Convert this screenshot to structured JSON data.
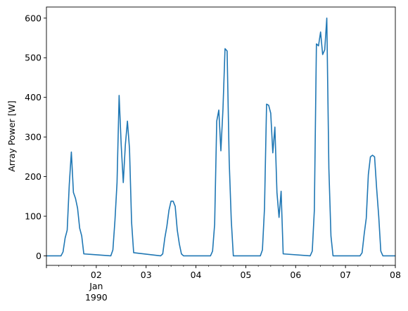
{
  "chart_data": {
    "type": "line",
    "title": "",
    "xlabel": "",
    "ylabel": "Array Power [W]",
    "xlim": [
      "1990-01-01 00:00",
      "1990-01-08 00:00"
    ],
    "ylim": [
      -24,
      628
    ],
    "grid": false,
    "legend": "none",
    "line_color": "#1f77b4",
    "x_ticks": [
      {
        "at": "1990-01-01 00:00",
        "label": ""
      },
      {
        "at": "1990-01-02 00:00",
        "label": "02",
        "sublabel": "Jan",
        "sublabel2": "1990"
      },
      {
        "at": "1990-01-03 00:00",
        "label": "03"
      },
      {
        "at": "1990-01-04 00:00",
        "label": "04"
      },
      {
        "at": "1990-01-05 00:00",
        "label": "05"
      },
      {
        "at": "1990-01-06 00:00",
        "label": "06"
      },
      {
        "at": "1990-01-07 00:00",
        "label": "07"
      },
      {
        "at": "1990-01-08 00:00",
        "label": "08"
      }
    ],
    "y_ticks": [
      0,
      100,
      200,
      300,
      400,
      500,
      600
    ],
    "series": [
      {
        "x": [
          "1990-01-01 00:00",
          "1990-01-01 07:00",
          "1990-01-01 08:00",
          "1990-01-01 09:00",
          "1990-01-01 10:00",
          "1990-01-01 11:00",
          "1990-01-01 12:00",
          "1990-01-01 13:00",
          "1990-01-01 14:00",
          "1990-01-01 15:00",
          "1990-01-01 16:00",
          "1990-01-01 17:00",
          "1990-01-01 18:00",
          "1990-01-02 07:00",
          "1990-01-02 08:00",
          "1990-01-02 09:00",
          "1990-01-02 10:00",
          "1990-01-02 11:00",
          "1990-01-02 12:00",
          "1990-01-02 13:00",
          "1990-01-02 14:00",
          "1990-01-02 15:00",
          "1990-01-02 16:00",
          "1990-01-02 17:00",
          "1990-01-02 18:00",
          "1990-01-03 07:00",
          "1990-01-03 08:00",
          "1990-01-03 09:00",
          "1990-01-03 10:00",
          "1990-01-03 11:00",
          "1990-01-03 12:00",
          "1990-01-03 13:00",
          "1990-01-03 14:00",
          "1990-01-03 15:00",
          "1990-01-03 16:00",
          "1990-01-03 17:00",
          "1990-01-03 18:00",
          "1990-01-04 07:00",
          "1990-01-04 08:00",
          "1990-01-04 09:00",
          "1990-01-04 10:00",
          "1990-01-04 11:00",
          "1990-01-04 12:00",
          "1990-01-04 13:00",
          "1990-01-04 14:00",
          "1990-01-04 15:00",
          "1990-01-04 16:00",
          "1990-01-04 17:00",
          "1990-01-04 18:00",
          "1990-01-05 07:00",
          "1990-01-05 08:00",
          "1990-01-05 09:00",
          "1990-01-05 10:00",
          "1990-01-05 11:00",
          "1990-01-05 12:00",
          "1990-01-05 13:00",
          "1990-01-05 14:00",
          "1990-01-05 15:00",
          "1990-01-05 16:00",
          "1990-01-05 17:00",
          "1990-01-05 18:00",
          "1990-01-06 07:00",
          "1990-01-06 08:00",
          "1990-01-06 09:00",
          "1990-01-06 10:00",
          "1990-01-06 11:00",
          "1990-01-06 12:00",
          "1990-01-06 13:00",
          "1990-01-06 14:00",
          "1990-01-06 15:00",
          "1990-01-06 16:00",
          "1990-01-06 17:00",
          "1990-01-06 18:00",
          "1990-01-07 07:00",
          "1990-01-07 08:00",
          "1990-01-07 09:00",
          "1990-01-07 10:00",
          "1990-01-07 11:00",
          "1990-01-07 12:00",
          "1990-01-07 13:00",
          "1990-01-07 14:00",
          "1990-01-07 15:00",
          "1990-01-07 16:00",
          "1990-01-07 17:00",
          "1990-01-07 18:00",
          "1990-01-08 00:00"
        ],
        "y": [
          0,
          0,
          10,
          45,
          65,
          180,
          262,
          160,
          145,
          120,
          70,
          50,
          5,
          0,
          15,
          90,
          185,
          405,
          280,
          185,
          280,
          340,
          270,
          85,
          8,
          0,
          5,
          45,
          75,
          115,
          138,
          138,
          125,
          65,
          30,
          5,
          0,
          0,
          12,
          80,
          340,
          368,
          265,
          370,
          523,
          517,
          240,
          90,
          0,
          0,
          15,
          120,
          383,
          380,
          360,
          260,
          325,
          160,
          97,
          163,
          5,
          0,
          12,
          115,
          535,
          530,
          565,
          508,
          520,
          600,
          220,
          50,
          0,
          0,
          8,
          55,
          95,
          205,
          250,
          254,
          250,
          170,
          100,
          12,
          0,
          0
        ]
      }
    ]
  }
}
